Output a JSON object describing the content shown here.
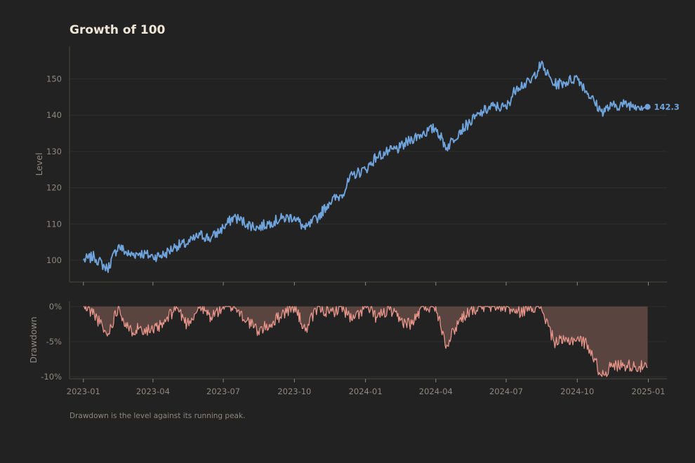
{
  "chart_data": [
    {
      "type": "line",
      "title": "Growth of 100",
      "ylabel": "Level",
      "ylim": [
        94,
        159
      ],
      "yticks": [
        "100",
        "110",
        "120",
        "130",
        "140",
        "150"
      ],
      "ytick_values": [
        100,
        110,
        120,
        130,
        140,
        150
      ],
      "grid": true,
      "x": [
        "2023-01-01",
        "2023-01-15",
        "2023-02-01",
        "2023-02-15",
        "2023-03-01",
        "2023-03-15",
        "2023-04-01",
        "2023-04-15",
        "2023-05-01",
        "2023-05-15",
        "2023-06-01",
        "2023-06-15",
        "2023-07-01",
        "2023-07-15",
        "2023-08-01",
        "2023-08-15",
        "2023-09-01",
        "2023-09-15",
        "2023-10-01",
        "2023-10-15",
        "2023-11-01",
        "2023-11-15",
        "2023-12-01",
        "2023-12-15",
        "2024-01-01",
        "2024-01-15",
        "2024-02-01",
        "2024-02-15",
        "2024-03-01",
        "2024-03-15",
        "2024-04-01",
        "2024-04-15",
        "2024-05-01",
        "2024-05-15",
        "2024-06-01",
        "2024-06-15",
        "2024-07-01",
        "2024-07-15",
        "2024-08-01",
        "2024-08-15",
        "2024-09-01",
        "2024-09-15",
        "2024-10-01",
        "2024-10-15",
        "2024-11-01",
        "2024-11-15",
        "2024-12-01",
        "2024-12-15",
        "2024-12-31"
      ],
      "series": [
        {
          "color": "#6fa3dc",
          "values": [
            100.0,
            101.0,
            97.5,
            104.0,
            101.5,
            102.0,
            101.0,
            101.5,
            104.0,
            104.5,
            107.0,
            106.0,
            109.0,
            112.0,
            110.0,
            109.0,
            110.5,
            111.5,
            112.0,
            108.5,
            112.0,
            116.0,
            118.0,
            123.5,
            125.0,
            128.5,
            130.0,
            131.0,
            133.5,
            135.0,
            136.5,
            131.0,
            135.5,
            138.0,
            141.0,
            142.5,
            142.0,
            148.0,
            149.0,
            154.0,
            148.5,
            149.0,
            150.5,
            146.0,
            141.0,
            142.5,
            143.0,
            142.8,
            142.3
          ]
        }
      ],
      "end_label": "142.3",
      "xticks": [
        "2023-01",
        "2023-04",
        "2023-07",
        "2023-10",
        "2024-01",
        "2024-04",
        "2024-07",
        "2024-10",
        "2025-01"
      ]
    },
    {
      "type": "area",
      "ylabel": "Drawdown",
      "ylim": [
        -10.3,
        0.8
      ],
      "yticks": [
        "0%",
        "-5%",
        "-10%"
      ],
      "ytick_values": [
        0,
        -5,
        -10
      ],
      "grid": true,
      "x": [
        "2023-01-01",
        "2023-01-15",
        "2023-02-01",
        "2023-02-15",
        "2023-03-01",
        "2023-03-15",
        "2023-04-01",
        "2023-04-15",
        "2023-05-01",
        "2023-05-15",
        "2023-06-01",
        "2023-06-15",
        "2023-07-01",
        "2023-07-15",
        "2023-08-01",
        "2023-08-15",
        "2023-09-01",
        "2023-09-15",
        "2023-10-01",
        "2023-10-15",
        "2023-11-01",
        "2023-11-15",
        "2023-12-01",
        "2023-12-15",
        "2024-01-01",
        "2024-01-15",
        "2024-02-01",
        "2024-02-15",
        "2024-03-01",
        "2024-03-15",
        "2024-04-01",
        "2024-04-15",
        "2024-05-01",
        "2024-05-15",
        "2024-06-01",
        "2024-06-15",
        "2024-07-01",
        "2024-07-15",
        "2024-08-01",
        "2024-08-15",
        "2024-09-01",
        "2024-09-15",
        "2024-10-01",
        "2024-10-15",
        "2024-11-01",
        "2024-11-15",
        "2024-12-01",
        "2024-12-15",
        "2024-12-31"
      ],
      "series": [
        {
          "color": "#e8958a",
          "fill": "#5a4440",
          "values": [
            0.0,
            -1.0,
            -4.2,
            0.0,
            -3.5,
            -3.0,
            -3.5,
            -2.5,
            0.0,
            -2.5,
            0.0,
            -1.5,
            0.0,
            0.0,
            -2.0,
            -3.5,
            -2.5,
            -1.0,
            0.0,
            -3.5,
            0.0,
            -1.0,
            0.0,
            -2.0,
            0.0,
            -1.5,
            -0.5,
            -2.0,
            -2.5,
            0.0,
            0.0,
            -5.5,
            -2.0,
            -0.5,
            0.0,
            0.0,
            0.0,
            -1.0,
            0.0,
            0.0,
            -5.0,
            -5.0,
            -4.5,
            -5.5,
            -9.8,
            -8.5,
            -8.3,
            -8.5,
            -8.7
          ]
        }
      ],
      "xticks": [
        "2023-01",
        "2023-04",
        "2023-07",
        "2023-10",
        "2024-01",
        "2024-04",
        "2024-07",
        "2024-10",
        "2025-01"
      ]
    }
  ],
  "note": "Drawdown is the level against its running peak.",
  "colors": {
    "background": "#222222",
    "axis": "#4a4a3e",
    "grid": "#2f2f2f",
    "tick": "#8e887e",
    "title": "#efe6d8"
  }
}
